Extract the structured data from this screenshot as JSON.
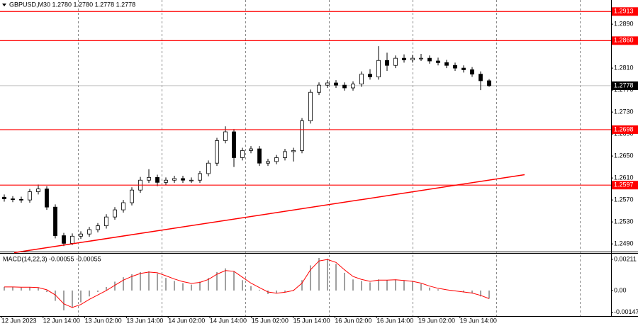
{
  "chart_data": [
    {
      "type": "candlestick",
      "header": "GBPUSD,M30  1.2780 1.2780 1.2778 1.2778",
      "candles": [
        [
          1.2575,
          1.258,
          1.2567,
          1.2572
        ],
        [
          1.2572,
          1.2577,
          1.2566,
          1.2571
        ],
        [
          1.2571,
          1.2576,
          1.2565,
          1.257
        ],
        [
          1.257,
          1.259,
          1.2565,
          1.2585
        ],
        [
          1.2585,
          1.2598,
          1.258,
          1.259
        ],
        [
          1.259,
          1.2595,
          1.2552,
          1.2557
        ],
        [
          1.2557,
          1.2562,
          1.25,
          1.2505
        ],
        [
          1.2505,
          1.251,
          1.2486,
          1.2491
        ],
        [
          1.2491,
          1.2509,
          1.2488,
          1.2504
        ],
        [
          1.2504,
          1.2513,
          1.2499,
          1.2508
        ],
        [
          1.2508,
          1.2521,
          1.2503,
          1.2516
        ],
        [
          1.2516,
          1.2528,
          1.2511,
          1.2523
        ],
        [
          1.2523,
          1.2544,
          1.2518,
          1.2539
        ],
        [
          1.2539,
          1.2557,
          1.2534,
          1.2552
        ],
        [
          1.2552,
          1.257,
          1.2547,
          1.2565
        ],
        [
          1.2565,
          1.2593,
          1.256,
          1.2588
        ],
        [
          1.2588,
          1.2612,
          1.2583,
          1.2606
        ],
        [
          1.2606,
          1.2626,
          1.2601,
          1.2611
        ],
        [
          1.2611,
          1.2616,
          1.2595,
          1.2602
        ],
        [
          1.2602,
          1.2611,
          1.2597,
          1.2606
        ],
        [
          1.2606,
          1.2614,
          1.2601,
          1.2609
        ],
        [
          1.2609,
          1.2614,
          1.2601,
          1.2606
        ],
        [
          1.2606,
          1.2611,
          1.2601,
          1.2606
        ],
        [
          1.2606,
          1.2623,
          1.2601,
          1.2618
        ],
        [
          1.2618,
          1.2642,
          1.2613,
          1.2637
        ],
        [
          1.2637,
          1.2683,
          1.2632,
          1.2678
        ],
        [
          1.2678,
          1.2704,
          1.2673,
          1.2694
        ],
        [
          1.2694,
          1.2699,
          1.263,
          1.2647
        ],
        [
          1.2647,
          1.2665,
          1.2642,
          1.266
        ],
        [
          1.266,
          1.2668,
          1.2655,
          1.2663
        ],
        [
          1.2663,
          1.2668,
          1.2632,
          1.2637
        ],
        [
          1.2637,
          1.2645,
          1.2632,
          1.264
        ],
        [
          1.264,
          1.2652,
          1.2635,
          1.2647
        ],
        [
          1.2647,
          1.2663,
          1.2642,
          1.2658
        ],
        [
          1.2658,
          1.2665,
          1.264,
          1.266
        ],
        [
          1.266,
          1.2719,
          1.2655,
          1.2714
        ],
        [
          1.2714,
          1.2771,
          1.2709,
          1.2766
        ],
        [
          1.2766,
          1.2784,
          1.2761,
          1.2779
        ],
        [
          1.2779,
          1.2788,
          1.2774,
          1.2783
        ],
        [
          1.2783,
          1.2788,
          1.2774,
          1.2779
        ],
        [
          1.2779,
          1.2784,
          1.2769,
          1.2774
        ],
        [
          1.2774,
          1.2786,
          1.2769,
          1.2781
        ],
        [
          1.2781,
          1.2804,
          1.2776,
          1.2799
        ],
        [
          1.2799,
          1.2808,
          1.2789,
          1.2794
        ],
        [
          1.2794,
          1.285,
          1.2789,
          1.2824
        ],
        [
          1.2824,
          1.2838,
          1.2805,
          1.2815
        ],
        [
          1.2815,
          1.2833,
          1.281,
          1.2828
        ],
        [
          1.2828,
          1.2835,
          1.282,
          1.2825
        ],
        [
          1.2825,
          1.2834,
          1.282,
          1.2828
        ],
        [
          1.2828,
          1.2836,
          1.2823,
          1.2828
        ],
        [
          1.2828,
          1.2833,
          1.2818,
          1.2823
        ],
        [
          1.2823,
          1.2829,
          1.2815,
          1.282
        ],
        [
          1.282,
          1.2825,
          1.281,
          1.2815
        ],
        [
          1.2815,
          1.282,
          1.2805,
          1.281
        ],
        [
          1.281,
          1.2815,
          1.2802,
          1.2807
        ],
        [
          1.2807,
          1.2812,
          1.2794,
          1.2799
        ],
        [
          1.2799,
          1.2804,
          1.277,
          1.2787
        ],
        [
          1.2787,
          1.279,
          1.2776,
          1.2778
        ]
      ],
      "ylim": [
        1.2476,
        1.2934
      ],
      "yticks": [
        {
          "value": 1.289,
          "label": "1.2890"
        },
        {
          "value": 1.281,
          "label": "1.2810"
        },
        {
          "value": 1.277,
          "label": "1.2770"
        },
        {
          "value": 1.273,
          "label": "1.2730"
        },
        {
          "value": 1.269,
          "label": "1.2690"
        },
        {
          "value": 1.265,
          "label": "1.2650"
        },
        {
          "value": 1.261,
          "label": "1.2610"
        },
        {
          "value": 1.257,
          "label": "1.2570"
        },
        {
          "value": 1.253,
          "label": "1.2530"
        },
        {
          "value": 1.249,
          "label": "1.2490"
        }
      ],
      "levels": [
        1.2913,
        {
          "value": 1.286,
          "label": "1.2860"
        },
        1.2698,
        1.2597
      ],
      "level_color": "#ff0000",
      "current_price": 1.2778,
      "trendline": [
        1.2474,
        1.2616
      ],
      "x_labels": [
        "12 Jun 2023",
        "12 Jun 14:00",
        "13 Jun 02:00",
        "13 Jun 14:00",
        "14 Jun 02:00",
        "14 Jun 14:00",
        "15 Jun 02:00",
        "15 Jun 14:00",
        "16 Jun 02:00",
        "16 Jun 14:00",
        "19 Jun 02:00",
        "19 Jun 14:00"
      ]
    },
    {
      "type": "macd",
      "label": "MACD(14,22,3) -0.00055 -0.00055",
      "histogram": [
        0.00024,
        0.00024,
        0.0002,
        0.00022,
        0.00018,
        -0.0001,
        -0.0007,
        -0.00134,
        -0.00115,
        -0.0008,
        -0.0004,
        -0.0001,
        0.00024,
        0.0006,
        0.0009,
        0.0011,
        0.00125,
        0.0013,
        0.00115,
        0.00085,
        0.00065,
        0.0005,
        0.0004,
        0.0006,
        0.00085,
        0.00125,
        0.0015,
        0.0013,
        0.0007,
        0.0003,
        5e-05,
        -0.00024,
        -0.0002,
        -0.0001,
        5e-05,
        0.0007,
        0.0017,
        0.0022,
        0.00215,
        0.0018,
        0.0012,
        0.00075,
        0.00065,
        0.00055,
        0.00075,
        0.0007,
        0.00075,
        0.00068,
        0.0006,
        0.00045,
        0.0002,
        8e-05,
        0.0,
        -5e-05,
        -0.00012,
        -0.0002,
        -0.0004,
        -0.00055
      ],
      "signal": [
        0.00024,
        0.00024,
        0.00022,
        0.00022,
        0.0002,
        5e-05,
        -0.0003,
        -0.0009,
        -0.00115,
        -0.00095,
        -0.0006,
        -0.0003,
        0.0,
        0.00035,
        0.0007,
        0.00095,
        0.00115,
        0.00125,
        0.0012,
        0.001,
        0.00078,
        0.0006,
        0.00048,
        0.00055,
        0.00075,
        0.0011,
        0.00135,
        0.0013,
        0.0009,
        0.0005,
        0.0002,
        -0.0001,
        -0.00018,
        -0.00012,
        0.0,
        0.0005,
        0.0014,
        0.002,
        0.0021,
        0.0019,
        0.0014,
        0.00095,
        0.00075,
        0.00062,
        0.0007,
        0.0007,
        0.00073,
        0.00068,
        0.00062,
        0.0005,
        0.0003,
        0.00015,
        5e-05,
        -3e-05,
        -0.0001,
        -0.00017,
        -0.00033,
        -0.00055
      ],
      "histogram_color": "#a0a0a0",
      "signal_color": "#ff0000",
      "ylim": [
        -0.00173,
        0.00249
      ],
      "yticks": [
        0.00211,
        {
          "value": 0,
          "label": "0.00"
        },
        -0.00147
      ]
    }
  ]
}
